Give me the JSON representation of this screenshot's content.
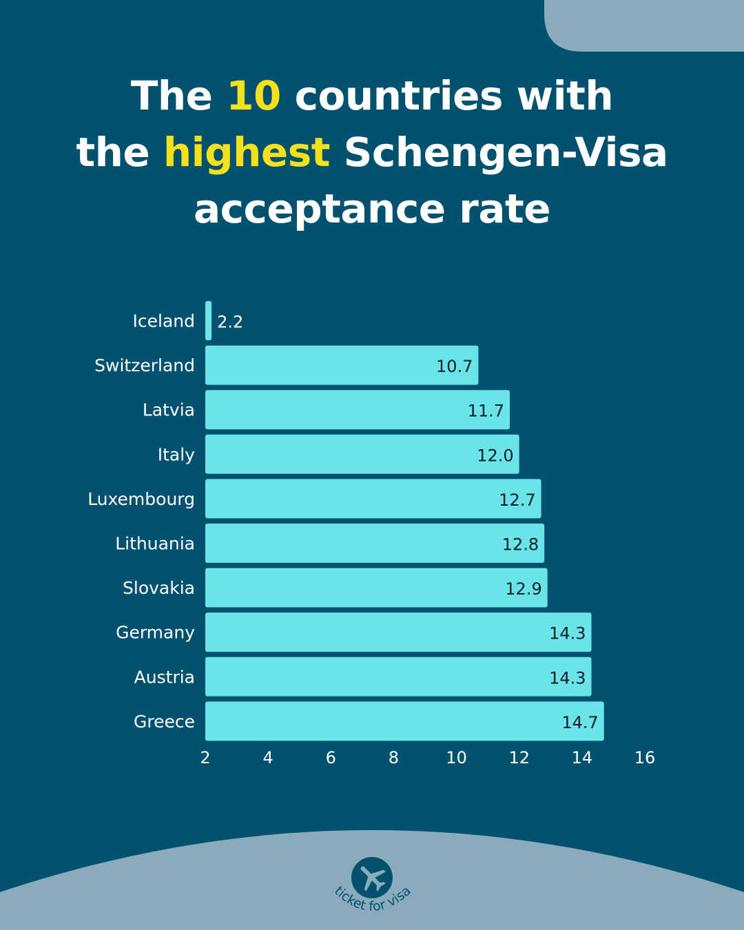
{
  "title": {
    "line1_pre": "The ",
    "line1_hl": "10",
    "line1_post": " countries with",
    "line2_pre": "the ",
    "line2_hl": "highest",
    "line2_post": " Schengen-Visa",
    "line3": "acceptance rate"
  },
  "colors": {
    "background": "#02516f",
    "bar": "#6be4e9",
    "highlight": "#f4e01b",
    "accent_light": "#8aabbc"
  },
  "chart_data": {
    "type": "bar",
    "orientation": "horizontal",
    "categories": [
      "Iceland",
      "Switzerland",
      "Latvia",
      "Italy",
      "Luxembourg",
      "Lithuania",
      "Slovakia",
      "Germany",
      "Austria",
      "Greece"
    ],
    "values": [
      2.2,
      10.7,
      11.7,
      12.0,
      12.7,
      12.8,
      12.9,
      14.3,
      14.3,
      14.7
    ],
    "value_labels": [
      "2.2",
      "10.7",
      "11.7",
      "12.0",
      "12.7",
      "12.8",
      "12.9",
      "14.3",
      "14.3",
      "14.7"
    ],
    "xlim": [
      2,
      16
    ],
    "xticks": [
      "2",
      "4",
      "6",
      "8",
      "10",
      "12",
      "14",
      "16"
    ],
    "grid": false
  },
  "logo": {
    "text": "ticket for visa",
    "icon": "airplane-icon"
  }
}
